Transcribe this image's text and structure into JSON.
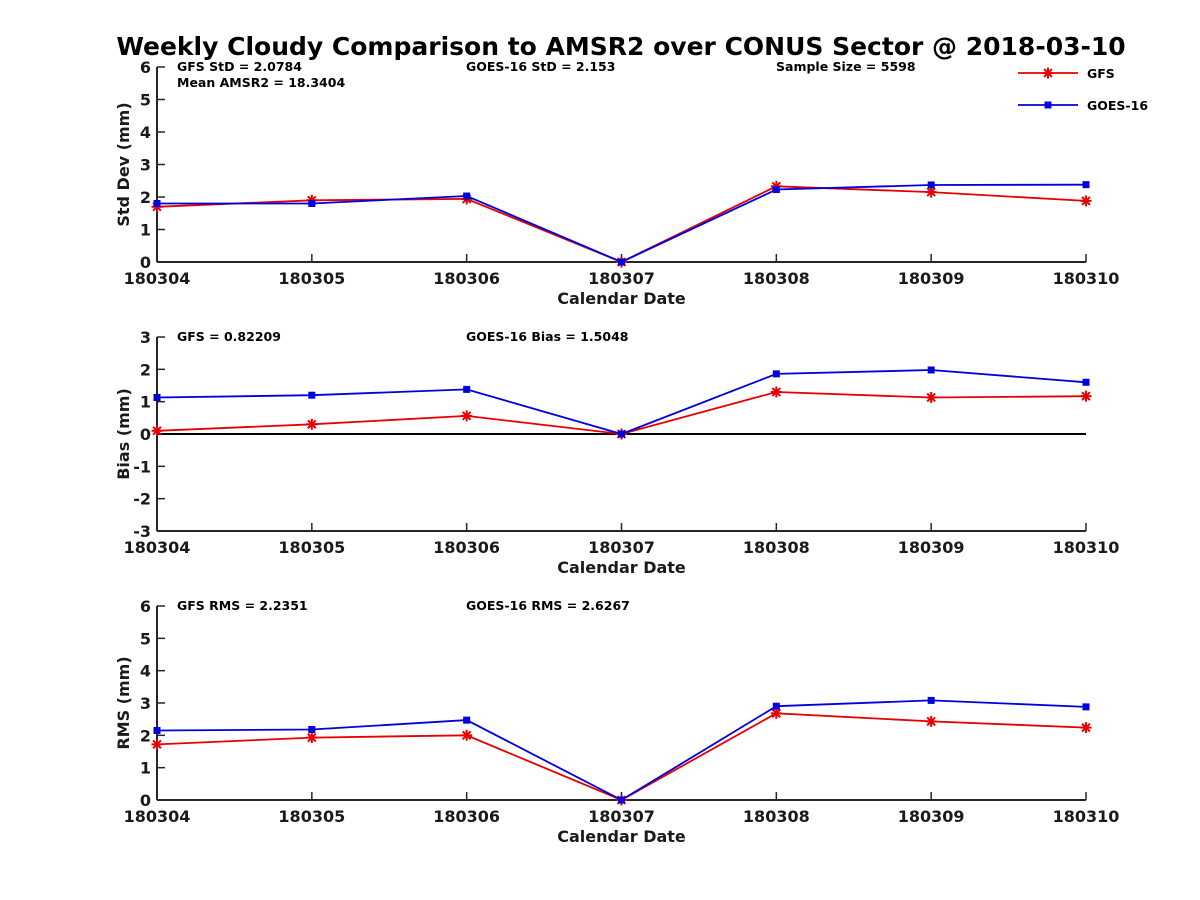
{
  "title": "Weekly Cloudy Comparison to AMSR2 over CONUS Sector @ 2018-03-10",
  "legend": {
    "placement": "top-right",
    "entries": [
      {
        "name": "GFS",
        "color": "#e60000",
        "marker": "asterisk"
      },
      {
        "name": "GOES-16",
        "color": "#0000dd",
        "marker": "square"
      }
    ]
  },
  "chart_data": [
    {
      "type": "line",
      "ylabel": "Std Dev (mm)",
      "xlabel": "Calendar Date",
      "categories": [
        "180304",
        "180305",
        "180306",
        "180307",
        "180308",
        "180309",
        "180310"
      ],
      "ylim": [
        0,
        6
      ],
      "yticks": [
        "0",
        "1",
        "2",
        "3",
        "4",
        "5",
        "6"
      ],
      "zero_line": false,
      "annotations": [
        {
          "text": "GFS StD = 2.0784",
          "row": 0,
          "col": "left"
        },
        {
          "text": "Mean AMSR2 = 18.3404",
          "row": 1,
          "col": "left"
        },
        {
          "text": "GOES-16 StD = 2.153",
          "row": 0,
          "col": "mid"
        },
        {
          "text": "Sample Size = 5598",
          "row": 0,
          "col": "right"
        }
      ],
      "series": [
        {
          "name": "GFS",
          "values": [
            1.7,
            1.9,
            1.94,
            0.0,
            2.33,
            2.15,
            1.88
          ]
        },
        {
          "name": "GOES-16",
          "values": [
            1.8,
            1.8,
            2.03,
            0.0,
            2.23,
            2.37,
            2.38
          ]
        }
      ]
    },
    {
      "type": "line",
      "ylabel": "Bias (mm)",
      "xlabel": "Calendar Date",
      "categories": [
        "180304",
        "180305",
        "180306",
        "180307",
        "180308",
        "180309",
        "180310"
      ],
      "ylim": [
        -3,
        3
      ],
      "yticks": [
        "-3",
        "-2",
        "-1",
        "0",
        "1",
        "2",
        "3"
      ],
      "zero_line": true,
      "annotations": [
        {
          "text": "GFS = 0.82209",
          "row": 0,
          "col": "left"
        },
        {
          "text": "GOES-16 Bias  = 1.5048",
          "row": 0,
          "col": "mid"
        }
      ],
      "series": [
        {
          "name": "GFS",
          "values": [
            0.1,
            0.3,
            0.56,
            0.0,
            1.3,
            1.13,
            1.17
          ]
        },
        {
          "name": "GOES-16",
          "values": [
            1.13,
            1.2,
            1.38,
            0.0,
            1.86,
            1.98,
            1.6
          ]
        }
      ]
    },
    {
      "type": "line",
      "ylabel": "RMS (mm)",
      "xlabel": "Calendar Date",
      "categories": [
        "180304",
        "180305",
        "180306",
        "180307",
        "180308",
        "180309",
        "180310"
      ],
      "ylim": [
        0,
        6
      ],
      "yticks": [
        "0",
        "1",
        "2",
        "3",
        "4",
        "5",
        "6"
      ],
      "zero_line": false,
      "annotations": [
        {
          "text": "GFS RMS = 2.2351",
          "row": 0,
          "col": "left"
        },
        {
          "text": "GOES-16 RMS = 2.6267",
          "row": 0,
          "col": "mid"
        }
      ],
      "series": [
        {
          "name": "GFS",
          "values": [
            1.72,
            1.93,
            2.0,
            0.0,
            2.68,
            2.43,
            2.24
          ]
        },
        {
          "name": "GOES-16",
          "values": [
            2.15,
            2.18,
            2.47,
            0.0,
            2.9,
            3.08,
            2.88
          ]
        }
      ]
    }
  ]
}
